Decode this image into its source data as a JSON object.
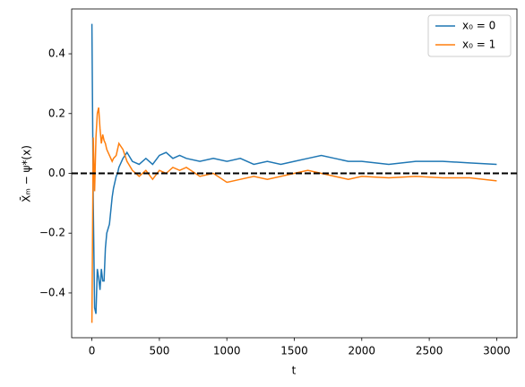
{
  "chart_data": {
    "type": "line",
    "xlabel": "t",
    "ylabel": "X̄ₘ − ψ*(x)",
    "x": [
      0,
      10,
      20,
      30,
      40,
      50,
      60,
      70,
      80,
      90,
      100,
      110,
      130,
      150,
      160,
      180,
      190,
      200,
      230,
      260,
      300,
      350,
      400,
      450,
      500,
      550,
      600,
      650,
      700,
      800,
      900,
      1000,
      1100,
      1200,
      1300,
      1400,
      1500,
      1600,
      1700,
      1800,
      1900,
      2000,
      2200,
      2400,
      2600,
      2800,
      3000
    ],
    "series": [
      {
        "name": "x₀ = 0",
        "color": "#1f77b4",
        "values": [
          0.5,
          -0.1,
          -0.45,
          -0.47,
          -0.32,
          -0.35,
          -0.39,
          -0.32,
          -0.36,
          -0.36,
          -0.25,
          -0.2,
          -0.17,
          -0.08,
          -0.05,
          -0.01,
          0.0,
          0.02,
          0.05,
          0.07,
          0.04,
          0.03,
          0.05,
          0.03,
          0.06,
          0.07,
          0.05,
          0.06,
          0.05,
          0.04,
          0.05,
          0.04,
          0.05,
          0.03,
          0.04,
          0.03,
          0.04,
          0.05,
          0.06,
          0.05,
          0.04,
          0.04,
          0.03,
          0.04,
          0.04,
          0.035,
          0.03
        ]
      },
      {
        "name": "x₀ = 1",
        "color": "#ff7f0e",
        "values": [
          -0.5,
          0.12,
          -0.06,
          0.12,
          0.2,
          0.22,
          0.15,
          0.1,
          0.13,
          0.11,
          0.1,
          0.08,
          0.06,
          0.04,
          0.05,
          0.06,
          0.08,
          0.1,
          0.08,
          0.04,
          0.01,
          -0.01,
          0.01,
          -0.02,
          0.01,
          0.0,
          0.02,
          0.01,
          0.02,
          -0.01,
          0.0,
          -0.03,
          -0.02,
          -0.01,
          -0.02,
          -0.01,
          0.0,
          0.01,
          0.0,
          -0.01,
          -0.02,
          -0.01,
          -0.015,
          -0.01,
          -0.015,
          -0.015,
          -0.025
        ]
      }
    ],
    "hline": 0,
    "xlim": [
      -150,
      3150
    ],
    "ylim": [
      -0.55,
      0.55
    ],
    "xticks": [
      0,
      500,
      1000,
      1500,
      2000,
      2500,
      3000
    ],
    "yticks": [
      {
        "value": -0.4,
        "label": "−0.4"
      },
      {
        "value": -0.2,
        "label": "−0.2"
      },
      {
        "value": 0,
        "label": "0.0"
      },
      0.2,
      0.4
    ],
    "legend": "upper right"
  }
}
